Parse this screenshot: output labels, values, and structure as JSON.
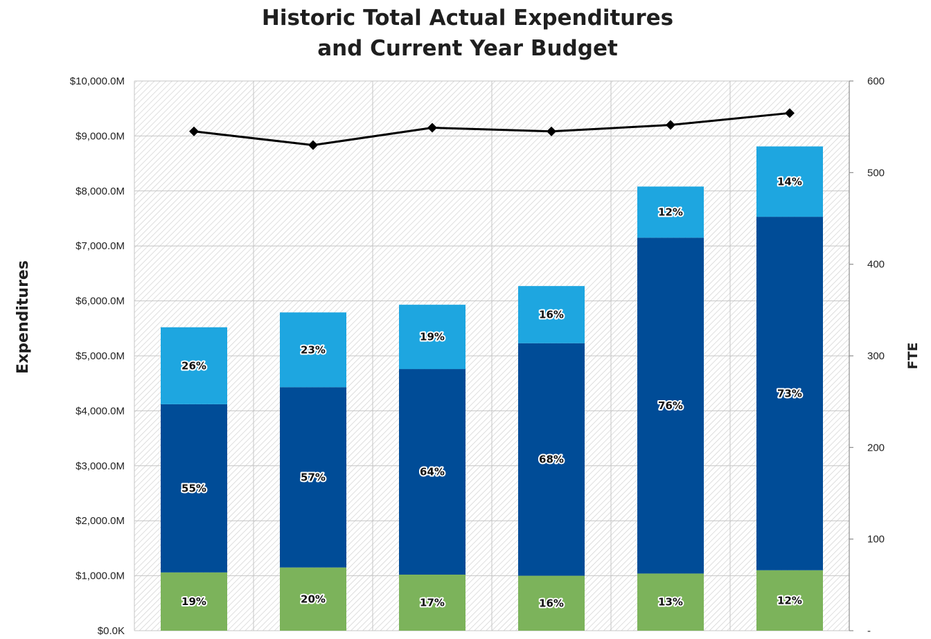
{
  "title_line1": "Historic Total Actual Expenditures",
  "title_line2": "and Current Year Budget",
  "chart_data": {
    "type": "bar",
    "stacked": true,
    "title": "Historic Total Actual Expenditures and Current Year Budget",
    "ylabel": "Expenditures",
    "y2label": "FTE",
    "ylim": [
      0,
      10000
    ],
    "y2lim": [
      0,
      600
    ],
    "y_ticks": [
      "$0.0K",
      "$1,000.0M",
      "$2,000.0M",
      "$3,000.0M",
      "$4,000.0M",
      "$5,000.0M",
      "$6,000.0M",
      "$7,000.0M",
      "$8,000.0M",
      "$9,000.0M",
      "$10,000.0M"
    ],
    "y_tick_values": [
      0,
      1000,
      2000,
      3000,
      4000,
      5000,
      6000,
      7000,
      8000,
      9000,
      10000
    ],
    "y2_ticks": [
      "-",
      "100",
      "200",
      "300",
      "400",
      "500",
      "600"
    ],
    "y2_tick_values": [
      0,
      100,
      200,
      300,
      400,
      500,
      600
    ],
    "y_unit": "$M",
    "grid": true,
    "categories": [
      "",
      "",
      "",
      "",
      "",
      ""
    ],
    "series": [
      {
        "type": "bar",
        "color": "#7cb35b",
        "values": [
          1060,
          1150,
          1020,
          1000,
          1040,
          1100
        ],
        "labels": [
          "19%",
          "20%",
          "17%",
          "16%",
          "13%",
          "12%"
        ]
      },
      {
        "type": "bar",
        "color": "#004c97",
        "values": [
          3060,
          3280,
          3740,
          4230,
          6110,
          6430
        ],
        "labels": [
          "55%",
          "57%",
          "64%",
          "68%",
          "76%",
          "73%"
        ]
      },
      {
        "type": "bar",
        "color": "#1ea6e0",
        "values": [
          1400,
          1360,
          1170,
          1040,
          930,
          1280
        ],
        "labels": [
          "26%",
          "23%",
          "19%",
          "16%",
          "12%",
          "14%"
        ]
      },
      {
        "type": "line",
        "axis": "secondary",
        "color": "#000000",
        "marker": "diamond",
        "values": [
          545,
          530,
          549,
          545,
          552,
          565
        ]
      }
    ]
  }
}
